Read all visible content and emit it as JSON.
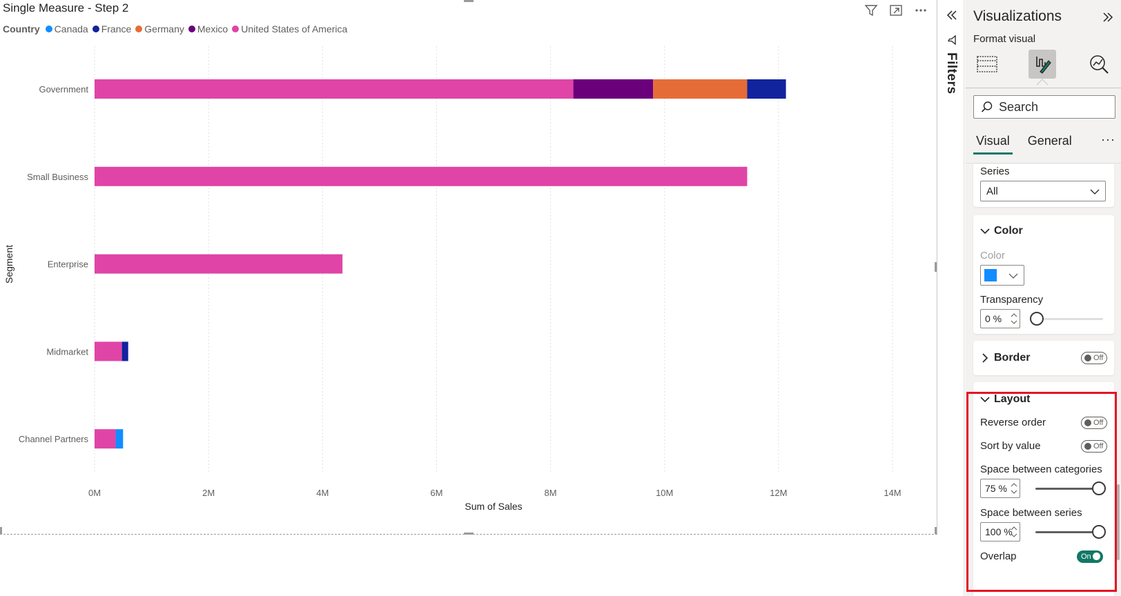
{
  "visual": {
    "title": "Single Measure - Step 2",
    "legend": {
      "title": "Country",
      "items": [
        {
          "label": "Canada",
          "color": "#118DFF"
        },
        {
          "label": "France",
          "color": "#12239E"
        },
        {
          "label": "Germany",
          "color": "#E66C37"
        },
        {
          "label": "Mexico",
          "color": "#6B007B"
        },
        {
          "label": "United States of America",
          "color": "#E044A7"
        }
      ]
    },
    "toolbar": [
      "filter-icon",
      "focus-mode-icon",
      "more-options-icon"
    ]
  },
  "chart_data": {
    "type": "bar",
    "orientation": "horizontal",
    "stacked": true,
    "title": "Single Measure - Step 2",
    "xlabel": "Sum of Sales",
    "ylabel": "Segment",
    "xlim": [
      0,
      14000000
    ],
    "xticks": [
      "0M",
      "2M",
      "4M",
      "6M",
      "8M",
      "10M",
      "12M",
      "14M"
    ],
    "categories": [
      "Government",
      "Small Business",
      "Enterprise",
      "Midmarket",
      "Channel Partners"
    ],
    "series": [
      {
        "name": "United States of America",
        "color": "#E044A7",
        "values": [
          8400000,
          11450000,
          4350000,
          480000,
          370000
        ]
      },
      {
        "name": "Mexico",
        "color": "#6B007B",
        "values": [
          1400000,
          0,
          0,
          0,
          0
        ]
      },
      {
        "name": "Germany",
        "color": "#E66C37",
        "values": [
          1650000,
          0,
          0,
          0,
          0
        ]
      },
      {
        "name": "France",
        "color": "#12239E",
        "values": [
          680000,
          0,
          0,
          110000,
          0
        ]
      },
      {
        "name": "Canada",
        "color": "#118DFF",
        "values": [
          0,
          0,
          0,
          0,
          130000
        ]
      }
    ],
    "grid": true,
    "legend_position": "top-left"
  },
  "filters": {
    "label": "Filters"
  },
  "pane": {
    "title": "Visualizations",
    "subtitle": "Format visual",
    "search_placeholder": "Search",
    "tabs": [
      "Visual",
      "General"
    ],
    "more": "···",
    "series": {
      "label": "Series",
      "value": "All"
    },
    "color_section": {
      "header": "Color",
      "color_label": "Color",
      "swatch": "#118DFF",
      "transparency_label": "Transparency",
      "transparency_value": "0 %",
      "transparency_level": 0
    },
    "border_section": {
      "header": "Border",
      "toggle": "Off"
    },
    "layout_section": {
      "header": "Layout",
      "reverse_order": {
        "label": "Reverse order",
        "toggle": "Off"
      },
      "sort_by_value": {
        "label": "Sort by value",
        "toggle": "Off"
      },
      "space_categories": {
        "label": "Space between categories",
        "value": "75 %",
        "level": 1
      },
      "space_series": {
        "label": "Space between series",
        "value": "100 %",
        "level": 1
      },
      "overlap": {
        "label": "Overlap",
        "toggle": "On"
      }
    }
  }
}
